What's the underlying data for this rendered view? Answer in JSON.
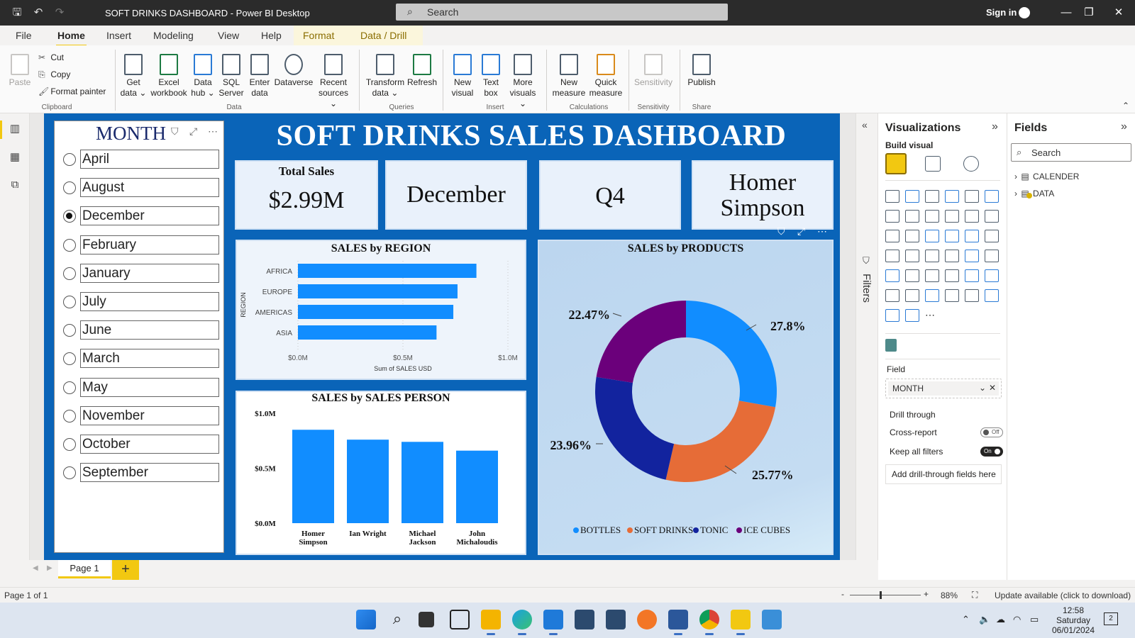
{
  "titlebar": {
    "title": "SOFT DRINKS DASHBOARD - Power BI Desktop",
    "search_placeholder": "Search",
    "signin": "Sign in"
  },
  "menu": {
    "tabs": [
      "File",
      "Home",
      "Insert",
      "Modeling",
      "View",
      "Help",
      "Format",
      "Data / Drill"
    ],
    "active": "Home"
  },
  "ribbon": {
    "paste": "Paste",
    "cut": "Cut",
    "copy": "Copy",
    "format_painter": "Format painter",
    "clipboard": "Clipboard",
    "data_group": "Data",
    "get_data": [
      "Get",
      "data ⌄"
    ],
    "excel": [
      "Excel",
      "workbook"
    ],
    "data_hub": [
      "Data",
      "hub ⌄"
    ],
    "sql": [
      "SQL",
      "Server"
    ],
    "enter_data": [
      "Enter",
      "data"
    ],
    "dataverse": "Dataverse",
    "recent": [
      "Recent",
      "sources ⌄"
    ],
    "queries": "Queries",
    "transform": [
      "Transform",
      "data ⌄"
    ],
    "refresh": "Refresh",
    "insert_group": "Insert",
    "new_visual": [
      "New",
      "visual"
    ],
    "text_box": [
      "Text",
      "box"
    ],
    "more_visuals": [
      "More",
      "visuals ⌄"
    ],
    "calculations": "Calculations",
    "new_measure": [
      "New",
      "measure"
    ],
    "quick_measure": [
      "Quick",
      "measure"
    ],
    "sensitivity_group": "Sensitivity",
    "sensitivity": "Sensitivity",
    "share": "Share",
    "publish": "Publish"
  },
  "slicer": {
    "title": "MONTH",
    "items": [
      "April",
      "August",
      "December",
      "February",
      "January",
      "July",
      "June",
      "March",
      "May",
      "November",
      "October",
      "September"
    ],
    "selected": "December"
  },
  "dashboard": {
    "title": "SOFT DRINKS SALES DASHBOARD",
    "cards": {
      "total_label": "Total Sales",
      "total_value": "$2.99M",
      "month": "December",
      "quarter": "Q4",
      "person_line1": "Homer",
      "person_line2": "Simpson"
    }
  },
  "chart_data": [
    {
      "type": "bar",
      "orientation": "horizontal",
      "title": "SALES by REGION",
      "xlabel": "Sum of SALES USD",
      "ylabel": "REGION",
      "categories": [
        "AFRICA",
        "EUROPE",
        "AMERICAS",
        "ASIA"
      ],
      "values": [
        0.85,
        0.76,
        0.74,
        0.66
      ],
      "unit": "$M",
      "xlim": [
        0,
        1.0
      ],
      "xticks": [
        "$0.0M",
        "$0.5M",
        "$1.0M"
      ],
      "color": "#118dff"
    },
    {
      "type": "bar",
      "title": "SALES by SALES PERSON",
      "categories": [
        "Homer Simpson",
        "Ian Wright",
        "Michael Jackson",
        "John Michaloudis"
      ],
      "values": [
        0.85,
        0.76,
        0.74,
        0.66
      ],
      "unit": "$M",
      "ylim": [
        0,
        1.0
      ],
      "yticks": [
        "$0.0M",
        "$0.5M",
        "$1.0M"
      ],
      "color": "#118dff"
    },
    {
      "type": "pie",
      "donut": true,
      "title": "SALES by PRODUCTS",
      "categories": [
        "BOTTLES",
        "SOFT DRINKS",
        "TONIC",
        "ICE CUBES"
      ],
      "values": [
        27.8,
        25.77,
        23.96,
        22.47
      ],
      "labels": [
        "27.8%",
        "25.77%",
        "23.96%",
        "22.47%"
      ],
      "colors": [
        "#118dff",
        "#e66c37",
        "#12239e",
        "#6b007b"
      ],
      "legend": "bottom"
    }
  ],
  "filters_label": "Filters",
  "visualizations": {
    "title": "Visualizations",
    "build_visual": "Build visual",
    "field_label": "Field",
    "field_value": "MONTH",
    "drill_through": "Drill through",
    "cross_report": "Cross-report",
    "cross_report_state": "Off",
    "keep_filters": "Keep all filters",
    "keep_filters_state": "On",
    "add_drill": "Add drill-through fields here"
  },
  "fields": {
    "title": "Fields",
    "search_placeholder": "Search",
    "tables": [
      "CALENDER",
      "DATA"
    ]
  },
  "pages": {
    "tab": "Page 1",
    "add": "+"
  },
  "status": {
    "page": "Page 1 of 1",
    "zoom": "88%",
    "update": "Update available (click to download)"
  },
  "taskbar": {
    "time": "12:58",
    "day": "Saturday",
    "date": "06/01/2024",
    "notifications": "2"
  }
}
